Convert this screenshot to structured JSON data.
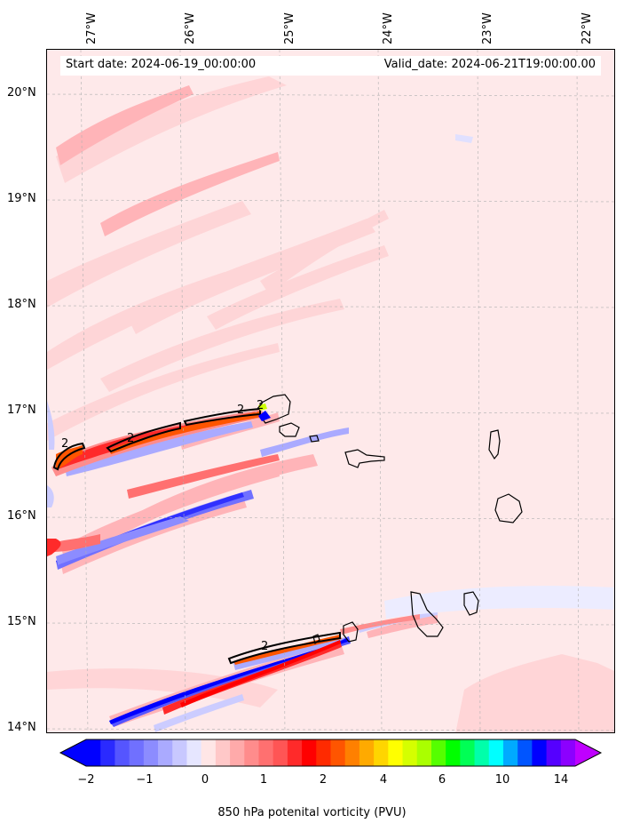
{
  "header": {
    "start_label": "Start date: 2024-06-19_00:00:00",
    "valid_label": "Valid_date: 2024-06-21T19:00:00.00"
  },
  "axes": {
    "longitude_labels": [
      "27°W",
      "26°W",
      "25°W",
      "24°W",
      "23°W",
      "22°W"
    ],
    "latitude_labels": [
      "20°N",
      "19°N",
      "18°N",
      "17°N",
      "16°N",
      "15°N",
      "14°N"
    ]
  },
  "colorbar": {
    "title": "850 hPa potenital vorticity (PVU)",
    "tick_labels": [
      "−2",
      "−1",
      "0",
      "1",
      "2",
      "4",
      "6",
      "10",
      "14"
    ],
    "colors": [
      "#0000ff",
      "#2a2aff",
      "#5555ff",
      "#7070ff",
      "#8c8cff",
      "#aaaaff",
      "#c8c8ff",
      "#e6e6ff",
      "#ffe6e6",
      "#ffc8c8",
      "#ffaaaa",
      "#ff8c8c",
      "#ff7070",
      "#ff5555",
      "#ff2a2a",
      "#ff0000",
      "#ff2a00",
      "#ff5500",
      "#ff8000",
      "#ffaa00",
      "#ffd500",
      "#ffff00",
      "#d5ff00",
      "#aaff00",
      "#55ff00",
      "#00ff00",
      "#00ff55",
      "#00ffaa",
      "#00ffff",
      "#00aaff",
      "#0055ff",
      "#0000ff",
      "#5500ff",
      "#8c00ff"
    ],
    "extend_low_color": "#0000ff",
    "extend_high_color": "#bf00ff"
  },
  "contour_labels": [
    "2",
    "2",
    "2",
    "2",
    "2"
  ]
}
